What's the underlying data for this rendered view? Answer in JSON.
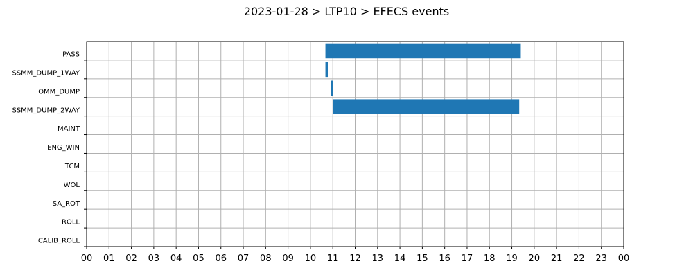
{
  "chart_data": {
    "type": "bar",
    "orientation": "horizontal-timeline",
    "title": "2023-01-28 > LTP10 > EFECS events",
    "xlabel": "",
    "ylabel": "",
    "xlim": [
      0,
      24
    ],
    "x_tick_labels": [
      "00",
      "01",
      "02",
      "03",
      "04",
      "05",
      "06",
      "07",
      "08",
      "09",
      "10",
      "11",
      "12",
      "13",
      "14",
      "15",
      "16",
      "17",
      "18",
      "19",
      "20",
      "21",
      "22",
      "23",
      "00"
    ],
    "categories": [
      "PASS",
      "SSMM_DUMP_1WAY",
      "OMM_DUMP",
      "SSMM_DUMP_2WAY",
      "MAINT",
      "ENG_WIN",
      "TCM",
      "WOL",
      "SA_ROT",
      "ROLL",
      "CALIB_ROLL"
    ],
    "events": [
      {
        "category": "PASS",
        "start": 10.67,
        "end": 19.4
      },
      {
        "category": "SSMM_DUMP_1WAY",
        "start": 10.67,
        "end": 10.8
      },
      {
        "category": "OMM_DUMP",
        "start": 10.93,
        "end": 11.0
      },
      {
        "category": "SSMM_DUMP_2WAY",
        "start": 11.0,
        "end": 19.33
      }
    ],
    "grid": true,
    "colors": {
      "bar": "#1f77b4",
      "grid": "#b0b0b0"
    }
  }
}
